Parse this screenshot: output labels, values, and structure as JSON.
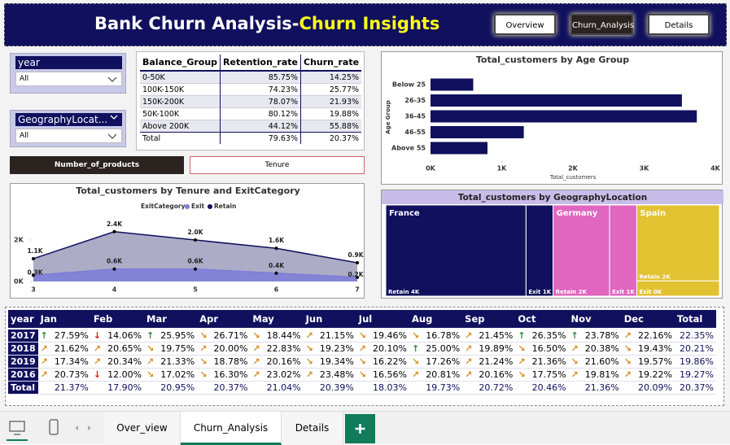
{
  "header": {
    "title": "Bank Churn Analysis-",
    "title_highlight": "Churn Insights",
    "nav": [
      "Overview",
      "Churn_Analysis",
      "Details"
    ]
  },
  "slicers": [
    {
      "label": "year",
      "value": "All"
    },
    {
      "label": "GeographyLocat...",
      "value": "All"
    }
  ],
  "balance_table": {
    "columns": [
      "Balance_Group",
      "Retention_rate",
      "Churn_rate"
    ],
    "rows": [
      [
        "0-50K",
        "85.75%",
        "14.25%"
      ],
      [
        "100K-150K",
        "74.23%",
        "25.77%"
      ],
      [
        "150K-200K",
        "78.07%",
        "21.93%"
      ],
      [
        "50K-100K",
        "80.12%",
        "19.88%"
      ],
      [
        "Above 200K",
        "44.12%",
        "55.88%"
      ],
      [
        "Total",
        "79.63%",
        "20.37%"
      ]
    ]
  },
  "toggle": [
    "Number_of_products",
    "Tenure"
  ],
  "chart_data": [
    {
      "type": "bar",
      "title": "Total_customers by Age Group",
      "categories": [
        "Below 25",
        "26-35",
        "36-45",
        "46-55",
        "Above 55"
      ],
      "values": [
        600,
        3530,
        3740,
        1310,
        800
      ],
      "color": "#10105e",
      "xlim": [
        0,
        4000
      ],
      "xticks": [
        {
          "value": 0,
          "label": "0K"
        },
        {
          "value": 1000,
          "label": "1K"
        },
        {
          "value": 2000,
          "label": "2K"
        },
        {
          "value": 3000,
          "label": "3K"
        },
        {
          "value": 4000,
          "label": "4K"
        }
      ],
      "x_label": "Total_customers",
      "y_label": "Age Group"
    },
    {
      "type": "area",
      "title": "Total_customers by Tenure and ExitCategory",
      "legend_title": "ExitCategory",
      "x": [
        3,
        4,
        5,
        6,
        7
      ],
      "xticks": [
        3,
        4,
        5,
        6,
        7
      ],
      "ylim": [
        0,
        3000
      ],
      "yticks": [
        {
          "value": 0,
          "label": "0K"
        },
        {
          "value": 2000,
          "label": "2K"
        }
      ],
      "series": [
        {
          "name": "Exit",
          "color": "#7c7cd8",
          "values": [
            300,
            600,
            600,
            400,
            200
          ],
          "value_labels": [
            "0.3K",
            "0.6K",
            "0.6K",
            "0.4K",
            "0.2K"
          ]
        },
        {
          "name": "Retain",
          "color": "#10105e",
          "values": [
            1100,
            2400,
            2000,
            1600,
            900
          ],
          "value_labels": [
            "1.1K",
            "2.4K",
            "2.0K",
            "1.6K",
            "0.9K"
          ]
        }
      ]
    },
    {
      "type": "treemap",
      "title": "Total_customers by GeographyLocation",
      "groups": [
        {
          "name": "France",
          "color": "#10105e",
          "children": [
            {
              "name": "Retain",
              "value": 4204,
              "value_label": "4K"
            },
            {
              "name": "Exit",
              "value": 810,
              "value_label": "1K"
            }
          ]
        },
        {
          "name": "Germany",
          "color": "#e066c0",
          "children": [
            {
              "name": "Retain",
              "value": 1695,
              "value_label": "2K"
            },
            {
              "name": "Exit",
              "value": 814,
              "value_label": "1K"
            }
          ]
        },
        {
          "name": "Spain",
          "color": "#e3c232",
          "children": [
            {
              "name": "Retain",
              "value": 2064,
              "value_label": "2K"
            },
            {
              "name": "Exit",
              "value": 413,
              "value_label": "0K"
            }
          ]
        }
      ]
    }
  ],
  "matrix": {
    "columns": [
      "year",
      "Jan",
      "Feb",
      "Mar",
      "Apr",
      "May",
      "Jun",
      "Jul",
      "Aug",
      "Sep",
      "Oct",
      "Nov",
      "Dec",
      "Total"
    ],
    "rows": [
      [
        "2017",
        "27.59%",
        "14.06%",
        "25.95%",
        "26.71%",
        "18.44%",
        "21.15%",
        "19.46%",
        "16.78%",
        "21.45%",
        "26.35%",
        "23.78%",
        "22.16%",
        "22.35%"
      ],
      [
        "2018",
        "21.62%",
        "20.65%",
        "19.75%",
        "20.00%",
        "22.83%",
        "19.23%",
        "20.10%",
        "25.00%",
        "19.89%",
        "16.50%",
        "20.38%",
        "19.43%",
        "20.21%"
      ],
      [
        "2019",
        "17.34%",
        "20.34%",
        "21.33%",
        "18.78%",
        "20.16%",
        "19.34%",
        "16.22%",
        "17.26%",
        "21.24%",
        "21.36%",
        "21.60%",
        "19.57%",
        "19.86%"
      ],
      [
        "2016",
        "20.73%",
        "12.00%",
        "17.02%",
        "16.30%",
        "23.02%",
        "23.48%",
        "16.56%",
        "20.81%",
        "20.16%",
        "17.75%",
        "19.81%",
        "19.22%",
        "19.27%"
      ],
      [
        "Total",
        "21.37%",
        "17.90%",
        "20.95%",
        "20.37%",
        "21.04%",
        "20.39%",
        "18.03%",
        "19.73%",
        "20.72%",
        "20.46%",
        "21.36%",
        "20.09%",
        "20.37%"
      ]
    ]
  },
  "tabs": [
    "Over_view",
    "Churn_Analysis",
    "Details"
  ]
}
